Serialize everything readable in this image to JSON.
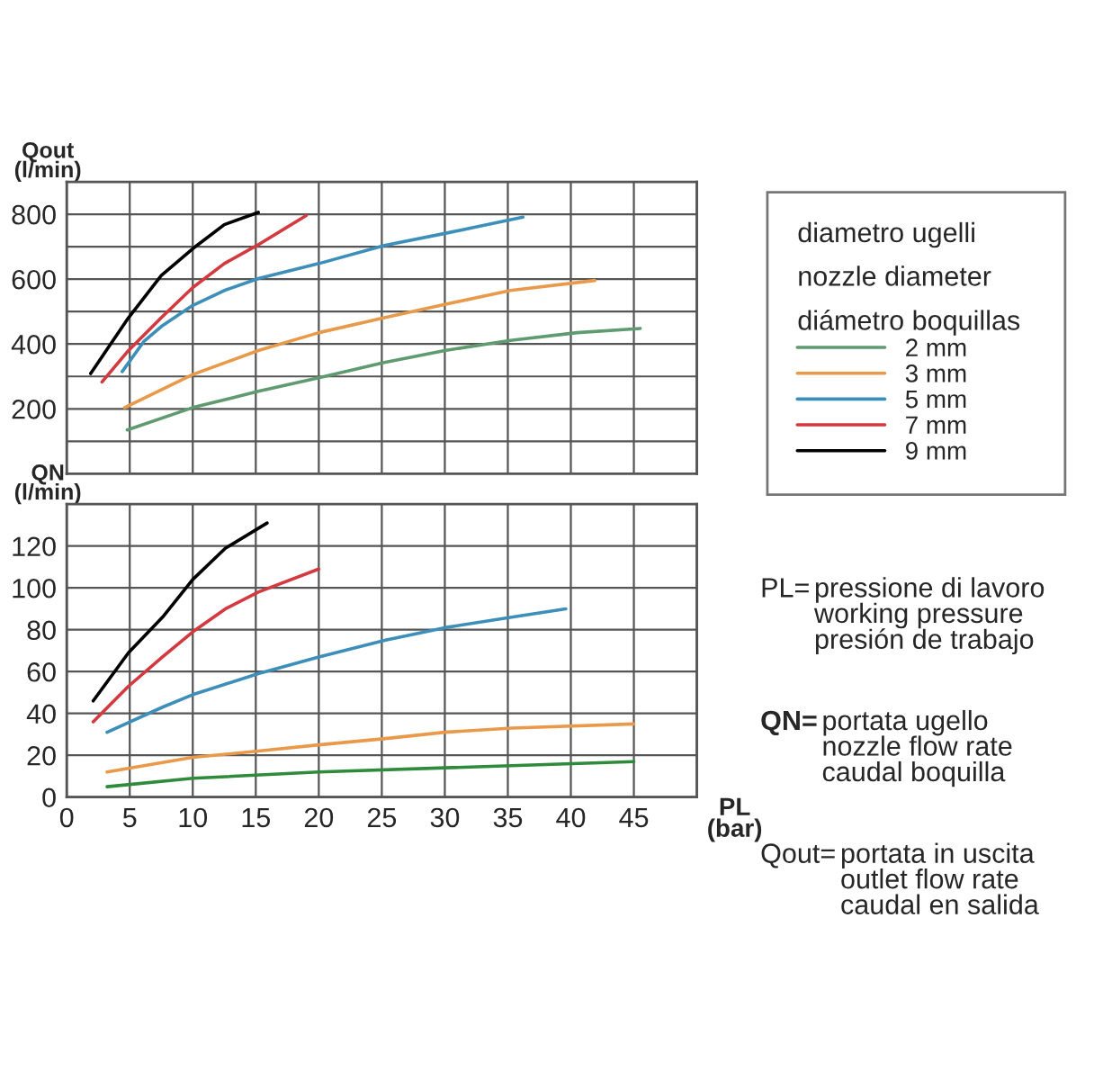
{
  "chart_data": [
    {
      "type": "line",
      "ylabel": "Qout\n(l/min)",
      "legend_title": "diametro ugelli\nnozzle diameter\ndiámetro boquillas",
      "legend": "right",
      "grid": true,
      "tick_labels": "y",
      "marker": "none",
      "line_style": "solid",
      "xlim": [
        0,
        50
      ],
      "xticks": [
        0,
        5,
        10,
        15,
        20,
        25,
        30,
        35,
        40,
        45,
        50
      ],
      "ylim": [
        0,
        900
      ],
      "yticks": [
        {
          "value": 100,
          "label": null
        },
        200,
        {
          "value": 300,
          "label": null
        },
        400,
        {
          "value": 500,
          "label": null
        },
        600,
        {
          "value": 700,
          "label": null
        },
        800
      ],
      "series": [
        {
          "name": "2 mm",
          "color": "#5f9a70",
          "x": [
            4.8,
            10,
            15.2,
            20,
            25.2,
            30,
            35.2,
            40.5,
            45.5
          ],
          "values": [
            135,
            204,
            254,
            296,
            343,
            380,
            411,
            435,
            448
          ]
        },
        {
          "name": "3 mm",
          "color": "#e9994a",
          "x": [
            4.6,
            7.5,
            10,
            15.2,
            20,
            25.2,
            30,
            35.2,
            41.9
          ],
          "values": [
            204,
            259,
            306,
            380,
            435,
            481,
            522,
            565,
            596
          ]
        },
        {
          "name": "5 mm",
          "color": "#3d8fba",
          "x": [
            4.4,
            6.1,
            7.5,
            10,
            12.5,
            15.2,
            20,
            25.2,
            30,
            36.2
          ],
          "values": [
            315,
            407,
            454,
            519,
            565,
            602,
            648,
            704,
            741,
            791
          ]
        },
        {
          "name": "7 mm",
          "color": "#d33a3f",
          "x": [
            2.8,
            4.9,
            7.5,
            10,
            12.5,
            15.1,
            19
          ],
          "values": [
            283,
            380,
            481,
            574,
            648,
            704,
            796
          ]
        },
        {
          "name": "9 mm",
          "color": "#000000",
          "x": [
            1.9,
            4.9,
            7.5,
            10,
            12.5,
            15.2
          ],
          "values": [
            309,
            481,
            611,
            694,
            768,
            806
          ]
        }
      ]
    },
    {
      "type": "line",
      "ylabel": "QN\n(l/min)",
      "xlabel": "PL\n(bar)",
      "grid": true,
      "marker": "none",
      "line_style": "solid",
      "xlim": [
        0,
        50
      ],
      "xticks": [
        0,
        5,
        10,
        15,
        20,
        25,
        30,
        35,
        40,
        45,
        {
          "value": 50,
          "label": null
        }
      ],
      "ylim": [
        0,
        140
      ],
      "yticks": [
        0,
        20,
        40,
        60,
        80,
        100,
        120
      ],
      "annotations": [
        "PL= pressione di lavoro\nworking pressure\npresión de trabajo",
        "QN=portata ugello\nnozzle flow rate\ncaudal boquilla",
        "Qout=portata in uscita\noutlet flow rate\ncaudal en salida"
      ],
      "series": [
        {
          "color": "#2f8a3c",
          "x": [
            3.2,
            10,
            20,
            30,
            45
          ],
          "values": [
            5,
            9,
            12,
            14,
            17
          ]
        },
        {
          "color": "#e9994a",
          "x": [
            3.2,
            10,
            15.2,
            20,
            25.3,
            30,
            35.3,
            45
          ],
          "values": [
            12,
            19,
            22,
            25,
            28,
            31,
            33,
            35
          ]
        },
        {
          "color": "#3d8fba",
          "x": [
            3.2,
            7.6,
            10,
            15.2,
            20,
            25.3,
            30,
            35.3,
            39.6
          ],
          "values": [
            31,
            43,
            49,
            59,
            67,
            75,
            81,
            86,
            90
          ]
        },
        {
          "color": "#d33a3f",
          "x": [
            2.1,
            4.9,
            7.6,
            10,
            12.6,
            15.2,
            20
          ],
          "values": [
            36,
            53,
            67,
            79,
            90,
            98,
            109
          ]
        },
        {
          "color": "#000000",
          "x": [
            2.1,
            4.9,
            7.6,
            10,
            12.6,
            15.9
          ],
          "values": [
            46,
            69,
            86,
            104,
            119,
            131
          ]
        }
      ]
    }
  ]
}
